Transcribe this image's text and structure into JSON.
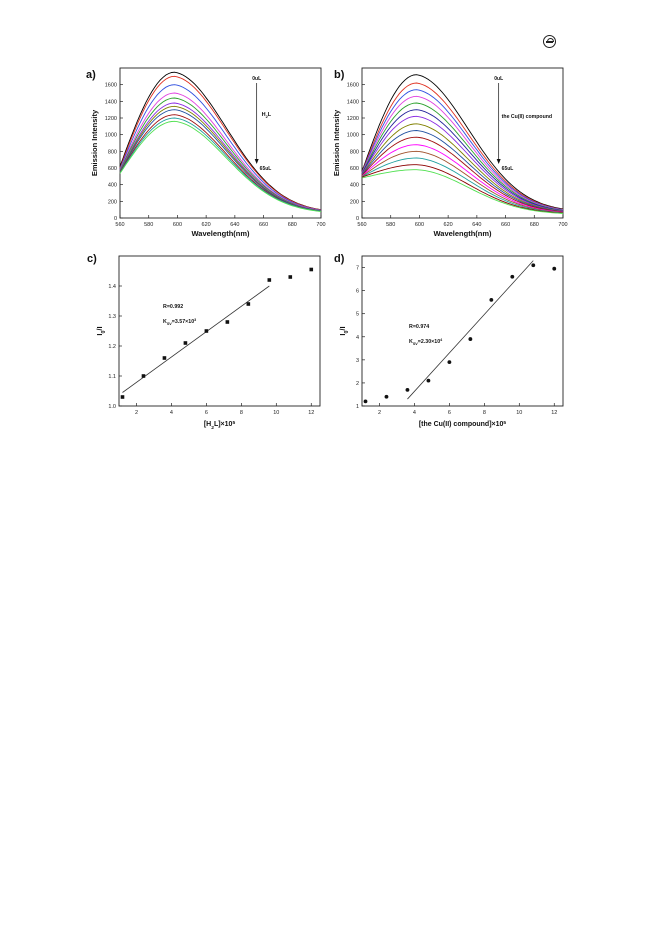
{
  "header": {
    "badge_icon": "journal-logo-icon"
  },
  "chart_data": [
    {
      "panel_label": "a)",
      "type": "line",
      "xlabel": "Wavelength(nm)",
      "ylabel": "Emission Intensity",
      "xlim": [
        560,
        700
      ],
      "ylim": [
        0,
        1800
      ],
      "xticks": [
        560,
        580,
        600,
        620,
        640,
        660,
        680,
        700
      ],
      "yticks": [
        0,
        200,
        400,
        600,
        800,
        1000,
        1200,
        1400,
        1600
      ],
      "peak_x": 598,
      "start_values": [
        620,
        600,
        590,
        580,
        570,
        560,
        555,
        550,
        545,
        540,
        535
      ],
      "peak_values": [
        1750,
        1700,
        1600,
        1500,
        1440,
        1380,
        1340,
        1300,
        1240,
        1200,
        1160
      ],
      "end_values": [
        60,
        60,
        58,
        58,
        56,
        56,
        55,
        55,
        54,
        54,
        52
      ],
      "colors": [
        "#000000",
        "#e03020",
        "#3050e0",
        "#e040e0",
        "#2aa02a",
        "#8a2be2",
        "#808000",
        "#2050a0",
        "#a01010",
        "#20a0a0",
        "#50e050"
      ],
      "annotation_top": "0uL",
      "annotation_mid": "H2L",
      "annotation_bottom": "65uL"
    },
    {
      "panel_label": "b)",
      "type": "line",
      "xlabel": "Wavelength(nm)",
      "ylabel": "Emission Intensity",
      "xlim": [
        560,
        700
      ],
      "ylim": [
        0,
        1800
      ],
      "xticks": [
        560,
        580,
        600,
        620,
        640,
        660,
        680,
        700
      ],
      "yticks": [
        0,
        200,
        400,
        600,
        800,
        1000,
        1200,
        1400,
        1600
      ],
      "peak_x": 598,
      "start_values": [
        560,
        550,
        545,
        540,
        535,
        530,
        525,
        520,
        515,
        510,
        505,
        500,
        495,
        490,
        480
      ],
      "peak_values": [
        1720,
        1620,
        1540,
        1460,
        1380,
        1300,
        1220,
        1130,
        1050,
        970,
        880,
        800,
        720,
        640,
        580
      ],
      "end_values": [
        70,
        68,
        66,
        64,
        62,
        60,
        58,
        56,
        54,
        52,
        50,
        48,
        46,
        44,
        42
      ],
      "colors": [
        "#000000",
        "#e03020",
        "#3050e0",
        "#e040e0",
        "#2aa02a",
        "#20209a",
        "#8a2be2",
        "#808000",
        "#2050a0",
        "#a01010",
        "#ff00ff",
        "#a0522d",
        "#20a0a0",
        "#8b0000",
        "#50e050"
      ],
      "annotation_top": "0uL",
      "annotation_mid": "the Cu(II) compound",
      "annotation_bottom": "65uL"
    },
    {
      "panel_label": "c)",
      "type": "scatter",
      "xlabel": "[H2L]×10^5",
      "ylabel": "I0/I",
      "xlim": [
        1,
        12.5
      ],
      "ylim": [
        1.0,
        1.5
      ],
      "xticks": [
        2,
        4,
        6,
        8,
        10,
        12
      ],
      "yticks": [
        1.0,
        1.1,
        1.2,
        1.3,
        1.4
      ],
      "x": [
        1.2,
        2.4,
        3.6,
        4.8,
        6.0,
        7.2,
        8.4,
        9.6,
        10.8,
        12.0
      ],
      "y": [
        1.03,
        1.1,
        1.16,
        1.21,
        1.25,
        1.28,
        1.34,
        1.42,
        1.43,
        1.455
      ],
      "fit_line": [
        [
          1.2,
          1.045
        ],
        [
          9.6,
          1.4
        ]
      ],
      "annotation_r": "R=0.992",
      "annotation_ksv": "KSV=3.57×10^3"
    },
    {
      "panel_label": "d)",
      "type": "scatter",
      "xlabel": "[the Cu(II) compound]×10^5",
      "ylabel": "I0/I",
      "xlim": [
        1,
        12.5
      ],
      "ylim": [
        1,
        7.5
      ],
      "xticks": [
        2,
        4,
        6,
        8,
        10,
        12
      ],
      "yticks": [
        1,
        2,
        3,
        4,
        5,
        6,
        7
      ],
      "x": [
        1.2,
        2.4,
        3.6,
        4.8,
        6.0,
        7.2,
        8.4,
        9.6,
        10.8,
        12.0
      ],
      "y": [
        1.2,
        1.4,
        1.7,
        2.1,
        2.9,
        3.9,
        5.6,
        6.6,
        7.1,
        6.95
      ],
      "fit_line": [
        [
          3.6,
          1.3
        ],
        [
          10.8,
          7.3
        ]
      ],
      "annotation_r": "R=0.974",
      "annotation_ksv": "KSV=2.30×10^4"
    }
  ]
}
